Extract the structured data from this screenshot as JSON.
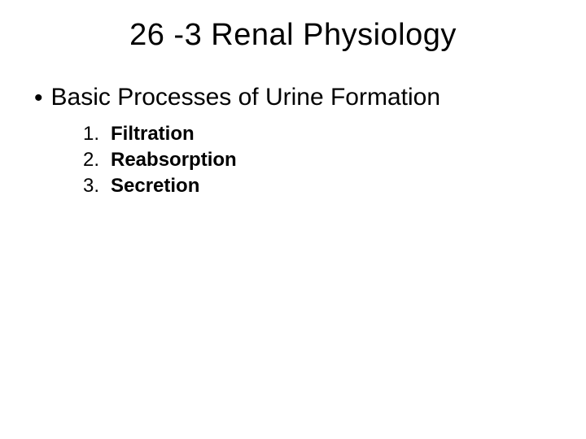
{
  "slide": {
    "title": "26 -3 Renal Physiology",
    "title_fontsize": 38,
    "title_color": "#000000",
    "background_color": "#ffffff",
    "bullet": {
      "marker": "•",
      "text": "Basic Processes of Urine Formation",
      "fontsize": 30,
      "color": "#000000"
    },
    "ordered_list": {
      "fontsize": 24,
      "font_weight": "bold",
      "color": "#000000",
      "items": [
        {
          "num": "1.",
          "label": "Filtration"
        },
        {
          "num": "2.",
          "label": "Reabsorption"
        },
        {
          "num": "3.",
          "label": "Secretion"
        }
      ]
    }
  }
}
